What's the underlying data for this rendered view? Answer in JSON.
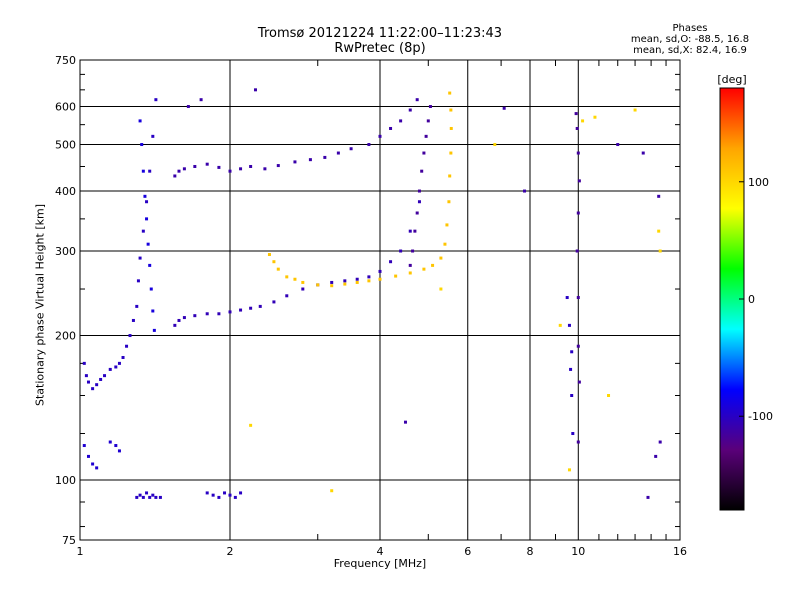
{
  "chart_data": {
    "type": "scatter",
    "title": "Tromsø 20121224 11:22:00–11:23:43",
    "subtitle": "RwPretec (8p)",
    "stats": {
      "heading": "Phases",
      "line_o": "mean, sd,O: -88.5, 16.8",
      "line_x": "mean, sd,X: 82.4, 16.9"
    },
    "xlabel": "Frequency [MHz]",
    "ylabel": "Stationary phase Virtual Height [km]",
    "x_scale": "log",
    "y_scale": "log",
    "xlim": [
      1,
      16
    ],
    "ylim": [
      75,
      750
    ],
    "x_ticks": [
      1,
      2,
      4,
      6,
      8,
      10,
      16
    ],
    "y_ticks": [
      75,
      100,
      200,
      300,
      400,
      500,
      600,
      750
    ],
    "grid": true,
    "colorbar": {
      "label": "[deg]",
      "range": [
        -180,
        180
      ],
      "ticks": [
        100,
        0,
        -100
      ],
      "colors": [
        "#000000",
        "#5a007a",
        "#0000ff",
        "#00ffff",
        "#00ff00",
        "#ffff00",
        "#ffa500",
        "#ff0000"
      ]
    },
    "series": [
      {
        "name": "",
        "phase": -100,
        "x": [
          1.02,
          1.03,
          1.04,
          1.06,
          1.08,
          1.1,
          1.12,
          1.15,
          1.18,
          1.2,
          1.22,
          1.24,
          1.26,
          1.28,
          1.3,
          1.31,
          1.32,
          1.34,
          1.36,
          1.38,
          1.4,
          1.42
        ],
        "y": [
          175,
          165,
          160,
          155,
          158,
          162,
          165,
          170,
          172,
          175,
          180,
          190,
          200,
          215,
          230,
          260,
          290,
          330,
          380,
          440,
          520,
          620
        ]
      },
      {
        "name": "",
        "phase": -90,
        "x": [
          1.32,
          1.33,
          1.34,
          1.35,
          1.36,
          1.37,
          1.38,
          1.39,
          1.4,
          1.41
        ],
        "y": [
          560,
          500,
          440,
          390,
          350,
          310,
          280,
          250,
          225,
          205
        ]
      },
      {
        "name": "",
        "phase": -105,
        "x": [
          1.55,
          1.58,
          1.62,
          1.7,
          1.8,
          1.9,
          2.0,
          2.1,
          2.2,
          2.3,
          2.45,
          2.6,
          2.8,
          3.0,
          3.2,
          3.4,
          3.6,
          3.8,
          4.0,
          4.2,
          4.4,
          4.6,
          4.8
        ],
        "y": [
          210,
          215,
          218,
          220,
          222,
          222,
          224,
          226,
          228,
          230,
          235,
          242,
          250,
          255,
          258,
          260,
          262,
          265,
          272,
          285,
          300,
          330,
          380
        ]
      },
      {
        "name": "",
        "phase": -110,
        "x": [
          1.55,
          1.58,
          1.62,
          1.7,
          1.8,
          1.9,
          2.0,
          2.1,
          2.2,
          2.35,
          2.5,
          2.7,
          2.9,
          3.1,
          3.3,
          3.5,
          3.8,
          4.0,
          4.2,
          4.4,
          4.6,
          4.75
        ],
        "y": [
          430,
          440,
          445,
          450,
          455,
          448,
          440,
          445,
          450,
          445,
          452,
          460,
          465,
          470,
          480,
          490,
          500,
          520,
          540,
          560,
          590,
          620
        ]
      },
      {
        "name": "",
        "phase": -115,
        "x": [
          4.6,
          4.65,
          4.7,
          4.75,
          4.8,
          4.85,
          4.9,
          4.95,
          5.0,
          5.05
        ],
        "y": [
          280,
          300,
          330,
          360,
          400,
          440,
          480,
          520,
          560,
          600
        ]
      },
      {
        "name": "",
        "phase": 110,
        "x": [
          2.4,
          2.45,
          2.5,
          2.6,
          2.7,
          2.8,
          3.0,
          3.2,
          3.4,
          3.6,
          3.8,
          4.0,
          4.3,
          4.6,
          4.9,
          5.1,
          5.3,
          5.4,
          5.45,
          5.5,
          5.52,
          5.55,
          5.56,
          5.55,
          5.52
        ],
        "y": [
          295,
          285,
          275,
          265,
          262,
          258,
          255,
          254,
          256,
          258,
          260,
          262,
          266,
          270,
          275,
          280,
          290,
          310,
          340,
          380,
          430,
          480,
          540,
          590,
          640
        ]
      },
      {
        "name": "",
        "phase": -100,
        "x": [
          1.3,
          1.32,
          1.34,
          1.36,
          1.38,
          1.4,
          1.42,
          1.45,
          1.8,
          1.85,
          1.9,
          1.95,
          2.0,
          2.05,
          2.1
        ],
        "y": [
          92,
          93,
          92,
          94,
          92,
          93,
          92,
          92,
          94,
          93,
          92,
          94,
          93,
          92,
          94
        ]
      },
      {
        "name": "",
        "phase": -95,
        "x": [
          1.02,
          1.04,
          1.06,
          1.08,
          1.15,
          1.18,
          1.2
        ],
        "y": [
          118,
          112,
          108,
          106,
          120,
          118,
          115
        ]
      },
      {
        "name": "",
        "phase": -115,
        "x": [
          9.9,
          9.95,
          10.0,
          10.05,
          10.0,
          9.95,
          10.0,
          10.0,
          10.05,
          10.0
        ],
        "y": [
          580,
          540,
          480,
          420,
          360,
          300,
          240,
          190,
          160,
          120
        ]
      },
      {
        "name": "",
        "phase": -100,
        "x": [
          9.5,
          9.6,
          9.7,
          9.65,
          9.7,
          9.75
        ],
        "y": [
          240,
          210,
          185,
          170,
          150,
          125
        ]
      },
      {
        "name": "",
        "phase": 100,
        "x": [
          3.2,
          5.3,
          6.8,
          9.6,
          10.8,
          11.5,
          13.0,
          14.5,
          2.2,
          9.2,
          14.6,
          10.2
        ],
        "y": [
          95,
          250,
          500,
          105,
          570,
          150,
          590,
          330,
          130,
          210,
          300,
          560
        ]
      },
      {
        "name": "",
        "phase": -110,
        "x": [
          7.1,
          7.8,
          12.0,
          13.5,
          14.5,
          14.6,
          13.8,
          14.3,
          2.25,
          4.5,
          1.75,
          1.65
        ],
        "y": [
          595,
          400,
          500,
          480,
          390,
          120,
          92,
          112,
          650,
          132,
          620,
          600
        ]
      }
    ]
  }
}
